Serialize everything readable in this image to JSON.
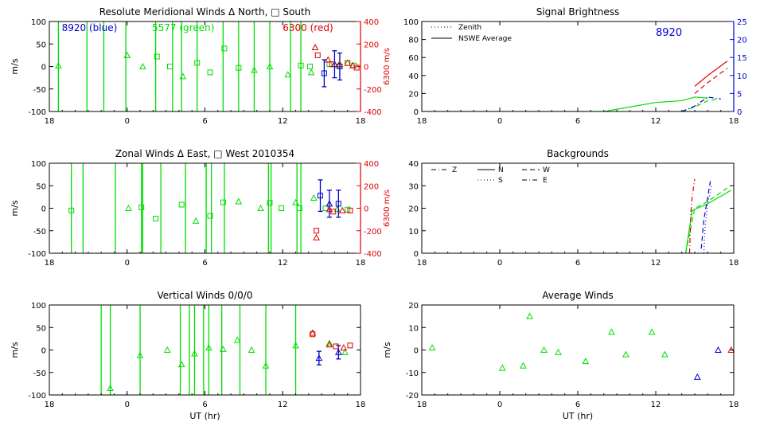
{
  "colors": {
    "green": "#00dd00",
    "blue": "#0000cc",
    "red": "#dd0000",
    "axis": "#000000"
  },
  "chart_data": [
    {
      "id": "meridional",
      "type": "scatter",
      "title": "Resolute Meridional Winds Δ North, □ South",
      "ylabel": "m/s",
      "y2label": "6300 m/s",
      "xlim": [
        18,
        42
      ],
      "ylim": [
        -100,
        100
      ],
      "y2lim": [
        -400,
        400
      ],
      "xticks": [
        "18",
        "0",
        "6",
        "12",
        "18"
      ],
      "yticks": [
        "100",
        "50",
        "0",
        "-50",
        "-100"
      ],
      "y2ticks": [
        "400",
        "200",
        "0",
        "-200",
        "-400"
      ],
      "annotations": [
        {
          "text": "8920 (blue)",
          "color": "blue"
        },
        {
          "text": "5577 (green)",
          "color": "green"
        },
        {
          "text": "6300 (red)",
          "color": "red"
        }
      ],
      "green_vlines": [
        18.7,
        20.9,
        22.2,
        23.9,
        26.2,
        27.5,
        28.2,
        29.4,
        31.4,
        32.6,
        33.8,
        35.0,
        36.6,
        37.4
      ],
      "green_points": [
        {
          "x": 18.7,
          "y": 2,
          "m": "tri"
        },
        {
          "x": 24.0,
          "y": 25,
          "m": "tri"
        },
        {
          "x": 25.2,
          "y": 0,
          "m": "tri"
        },
        {
          "x": 26.3,
          "y": 22,
          "m": "sq"
        },
        {
          "x": 27.3,
          "y": 0,
          "m": "sq"
        },
        {
          "x": 28.3,
          "y": -22,
          "m": "tri"
        },
        {
          "x": 29.4,
          "y": 8,
          "m": "sq"
        },
        {
          "x": 30.4,
          "y": -13,
          "m": "sq"
        },
        {
          "x": 31.5,
          "y": 40,
          "m": "sq"
        },
        {
          "x": 32.6,
          "y": -3,
          "m": "sq"
        },
        {
          "x": 33.8,
          "y": -8,
          "m": "tri"
        },
        {
          "x": 35.0,
          "y": 0,
          "m": "tri"
        },
        {
          "x": 36.4,
          "y": -18,
          "m": "tri"
        },
        {
          "x": 37.4,
          "y": 2,
          "m": "sq"
        },
        {
          "x": 38.1,
          "y": 0,
          "m": "sq"
        },
        {
          "x": 38.2,
          "y": -13,
          "m": "tri"
        },
        {
          "x": 39.6,
          "y": 5,
          "m": "sq"
        },
        {
          "x": 40.3,
          "y": 3,
          "m": "tri"
        },
        {
          "x": 41.0,
          "y": 8,
          "m": "tri"
        },
        {
          "x": 41.5,
          "y": 2,
          "m": "sq"
        }
      ],
      "blue_points": [
        {
          "x": 39.2,
          "y": -15,
          "err": 30,
          "m": "sq"
        },
        {
          "x": 40.0,
          "y": 5,
          "err": 30,
          "m": "tri"
        },
        {
          "x": 40.4,
          "y": 0,
          "err": 30,
          "m": "sq"
        }
      ],
      "red_points": [
        {
          "x": 38.5,
          "y2": 170,
          "m": "tri"
        },
        {
          "x": 38.7,
          "y2": 100,
          "m": "sq"
        },
        {
          "x": 39.5,
          "y2": 60,
          "m": "tri"
        },
        {
          "x": 39.8,
          "y2": 20,
          "m": "sq"
        },
        {
          "x": 40.4,
          "y2": 20,
          "m": "tri"
        },
        {
          "x": 41.0,
          "y2": 30,
          "m": "sq"
        },
        {
          "x": 41.4,
          "y2": 10,
          "m": "tri"
        },
        {
          "x": 41.7,
          "y2": -10,
          "m": "sq"
        }
      ]
    },
    {
      "id": "brightness",
      "type": "line",
      "title": "Signal Brightness",
      "annotation": "8920",
      "xlim": [
        18,
        42
      ],
      "ylim": [
        0,
        100
      ],
      "y2lim": [
        0,
        25
      ],
      "xticks": [
        "18",
        "0",
        "6",
        "12",
        "18"
      ],
      "yticks": [
        "100",
        "80",
        "60",
        "40",
        "20",
        "0"
      ],
      "y2ticks": [
        "25",
        "20",
        "15",
        "10",
        "5",
        "0"
      ],
      "legend": [
        {
          "label": "Zenith",
          "style": "dotted"
        },
        {
          "label": "NSWE Average",
          "style": "solid"
        }
      ],
      "series": [
        {
          "color": "green",
          "style": "solid",
          "x": [
            18,
            24,
            30,
            32,
            34,
            36,
            38,
            39,
            40
          ],
          "y": [
            0,
            0,
            0,
            0,
            5,
            10,
            12,
            16,
            15
          ]
        },
        {
          "color": "green",
          "style": "dashed",
          "x": [
            38,
            39,
            40,
            41
          ],
          "y": [
            0,
            5,
            12,
            14
          ]
        },
        {
          "color": "blue",
          "style": "dashdot",
          "x": [
            38,
            39,
            40,
            41
          ],
          "y2": [
            0,
            1.5,
            4,
            3.5
          ]
        },
        {
          "color": "red",
          "style": "solid",
          "x": [
            39,
            40,
            41.5
          ],
          "y2": [
            7,
            10,
            14
          ]
        },
        {
          "color": "red",
          "style": "dashed",
          "x": [
            39,
            40,
            41.5
          ],
          "y2": [
            5,
            8,
            12
          ]
        }
      ]
    },
    {
      "id": "zonal",
      "type": "scatter",
      "title": "Zonal Winds Δ East, □ West 2010354",
      "ylabel": "m/s",
      "y2label": "6300 m/s",
      "xlim": [
        18,
        42
      ],
      "ylim": [
        -100,
        100
      ],
      "y2lim": [
        -400,
        400
      ],
      "xticks": [
        "18",
        "0",
        "6",
        "12",
        "18"
      ],
      "yticks": [
        "100",
        "50",
        "0",
        "-50",
        "-100"
      ],
      "y2ticks": [
        "400",
        "200",
        "0",
        "-200",
        "-400"
      ],
      "green_vlines": [
        19.7,
        20.6,
        23.1,
        25.1,
        25.2,
        26.6,
        28.5,
        30.1,
        30.5,
        31.5,
        34.9,
        35.1,
        37.1,
        37.4
      ],
      "green_points": [
        {
          "x": 19.7,
          "y": -5,
          "m": "sq"
        },
        {
          "x": 24.1,
          "y": 0,
          "m": "tri"
        },
        {
          "x": 25.1,
          "y": 2,
          "m": "sq"
        },
        {
          "x": 26.2,
          "y": -23,
          "m": "sq"
        },
        {
          "x": 28.2,
          "y": 8,
          "m": "sq"
        },
        {
          "x": 29.3,
          "y": -28,
          "m": "tri"
        },
        {
          "x": 30.4,
          "y": -17,
          "m": "sq"
        },
        {
          "x": 31.4,
          "y": 13,
          "m": "sq"
        },
        {
          "x": 32.6,
          "y": 15,
          "m": "tri"
        },
        {
          "x": 34.3,
          "y": 0,
          "m": "tri"
        },
        {
          "x": 35.0,
          "y": 12,
          "m": "sq"
        },
        {
          "x": 35.9,
          "y": 0,
          "m": "sq"
        },
        {
          "x": 37.0,
          "y": 13,
          "m": "tri"
        },
        {
          "x": 37.3,
          "y": 0,
          "m": "sq"
        },
        {
          "x": 38.4,
          "y": 23,
          "m": "tri"
        },
        {
          "x": 39.3,
          "y": 0,
          "m": "sq"
        },
        {
          "x": 40.2,
          "y": -2,
          "m": "tri"
        },
        {
          "x": 41.0,
          "y": -3,
          "m": "sq"
        }
      ],
      "blue_points": [
        {
          "x": 38.9,
          "y": 28,
          "err": 35,
          "m": "sq"
        },
        {
          "x": 39.6,
          "y": 10,
          "err": 30,
          "m": "tri"
        },
        {
          "x": 40.3,
          "y": 10,
          "err": 30,
          "m": "sq"
        }
      ],
      "red_points": [
        {
          "x": 38.6,
          "y2": -260,
          "m": "tri"
        },
        {
          "x": 38.6,
          "y2": -200,
          "m": "sq"
        },
        {
          "x": 39.6,
          "y2": -10,
          "m": "tri"
        },
        {
          "x": 39.9,
          "y2": -30,
          "m": "sq"
        },
        {
          "x": 40.6,
          "y2": -20,
          "m": "tri"
        },
        {
          "x": 41.2,
          "y2": -20,
          "m": "sq"
        }
      ]
    },
    {
      "id": "backgrounds",
      "type": "line",
      "title": "Backgrounds",
      "xlim": [
        18,
        42
      ],
      "ylim": [
        0,
        40
      ],
      "xticks": [
        "18",
        "0",
        "6",
        "12",
        "18"
      ],
      "yticks": [
        "40",
        "30",
        "20",
        "10",
        "0"
      ],
      "legend": [
        {
          "label": "Z",
          "style": "dashdot"
        },
        {
          "label": "N",
          "style": "solid"
        },
        {
          "label": "W",
          "style": "dashed"
        },
        {
          "label": "S",
          "style": "dotted"
        },
        {
          "label": "E",
          "style": "dashdot"
        }
      ],
      "series": [
        {
          "color": "green",
          "style": "solid",
          "x": [
            38.3,
            38.8,
            40,
            41.8
          ],
          "y": [
            0,
            19,
            22,
            28
          ]
        },
        {
          "color": "green",
          "style": "dashed",
          "x": [
            38.3,
            39,
            40,
            41.5
          ],
          "y": [
            0,
            20,
            23,
            29
          ]
        },
        {
          "color": "red",
          "style": "dashdot",
          "x": [
            38.6,
            38.7,
            38.8,
            39.0
          ],
          "y": [
            0,
            18,
            25,
            33
          ]
        },
        {
          "color": "blue",
          "style": "dashed",
          "x": [
            39.5,
            39.7,
            40.0,
            40.2
          ],
          "y": [
            2,
            15,
            25,
            32
          ]
        },
        {
          "color": "blue",
          "style": "dotted",
          "x": [
            39.7,
            39.8,
            40.0,
            40.3
          ],
          "y": [
            0,
            12,
            22,
            30
          ]
        }
      ]
    },
    {
      "id": "vertical",
      "type": "scatter",
      "title": "Vertical Winds 0/0/0",
      "xlabel": "UT (hr)",
      "ylabel": "m/s",
      "xlim": [
        18,
        42
      ],
      "ylim": [
        -100,
        100
      ],
      "xticks": [
        "18",
        "0",
        "6",
        "12",
        "18"
      ],
      "yticks": [
        "100",
        "50",
        "0",
        "-50",
        "-100"
      ],
      "green_vlines": [
        22.0,
        22.7,
        25.0,
        28.1,
        28.8,
        29.2,
        29.9,
        30.3,
        31.3,
        32.7,
        34.7,
        37.0
      ],
      "green_points": [
        {
          "x": 22.7,
          "y": -85,
          "m": "tri"
        },
        {
          "x": 25.0,
          "y": -12,
          "m": "tri"
        },
        {
          "x": 27.1,
          "y": 0,
          "m": "tri"
        },
        {
          "x": 28.2,
          "y": -32,
          "m": "tri"
        },
        {
          "x": 29.2,
          "y": -8,
          "m": "tri"
        },
        {
          "x": 30.3,
          "y": 5,
          "m": "tri"
        },
        {
          "x": 31.4,
          "y": 2,
          "m": "tri"
        },
        {
          "x": 32.5,
          "y": 22,
          "m": "tri"
        },
        {
          "x": 33.6,
          "y": 0,
          "m": "tri"
        },
        {
          "x": 34.7,
          "y": -35,
          "m": "tri"
        },
        {
          "x": 37.0,
          "y": 10,
          "m": "tri"
        },
        {
          "x": 39.6,
          "y": 15,
          "m": "tri"
        },
        {
          "x": 40.8,
          "y": -5,
          "m": "tri"
        }
      ],
      "blue_points": [
        {
          "x": 38.8,
          "y": -18,
          "err": 15,
          "m": "tri"
        },
        {
          "x": 40.3,
          "y": -5,
          "err": 15,
          "m": "tri"
        }
      ],
      "red_points": [
        {
          "x": 38.3,
          "y": 38,
          "m": "tri"
        },
        {
          "x": 38.3,
          "y": 35,
          "m": "sq"
        },
        {
          "x": 39.6,
          "y": 12,
          "m": "tri"
        },
        {
          "x": 40.1,
          "y": 8,
          "m": "sq"
        },
        {
          "x": 40.7,
          "y": 5,
          "m": "tri"
        },
        {
          "x": 41.2,
          "y": 10,
          "m": "sq"
        }
      ]
    },
    {
      "id": "average",
      "type": "scatter",
      "title": "Average Winds",
      "xlabel": "UT (hr)",
      "ylabel": "m/s",
      "xlim": [
        18,
        42
      ],
      "ylim": [
        -20,
        20
      ],
      "xticks": [
        "18",
        "0",
        "6",
        "12",
        "18"
      ],
      "yticks": [
        "20",
        "10",
        "0",
        "-10",
        "-20"
      ],
      "green_points": [
        {
          "x": 18.8,
          "y": 1,
          "m": "tri"
        },
        {
          "x": 24.2,
          "y": -8,
          "m": "tri"
        },
        {
          "x": 25.8,
          "y": -7,
          "m": "tri"
        },
        {
          "x": 26.3,
          "y": 15,
          "m": "tri"
        },
        {
          "x": 27.4,
          "y": 0,
          "m": "tri"
        },
        {
          "x": 28.5,
          "y": -1,
          "m": "tri"
        },
        {
          "x": 30.6,
          "y": -5,
          "m": "tri"
        },
        {
          "x": 32.6,
          "y": 8,
          "m": "tri"
        },
        {
          "x": 33.7,
          "y": -2,
          "m": "tri"
        },
        {
          "x": 35.7,
          "y": 8,
          "m": "tri"
        },
        {
          "x": 36.7,
          "y": -2,
          "m": "tri"
        }
      ],
      "blue_points": [
        {
          "x": 39.2,
          "y": -12,
          "m": "tri"
        },
        {
          "x": 40.8,
          "y": 0,
          "m": "tri"
        }
      ],
      "red_points": [
        {
          "x": 41.8,
          "y": 0,
          "m": "tri"
        }
      ]
    }
  ]
}
